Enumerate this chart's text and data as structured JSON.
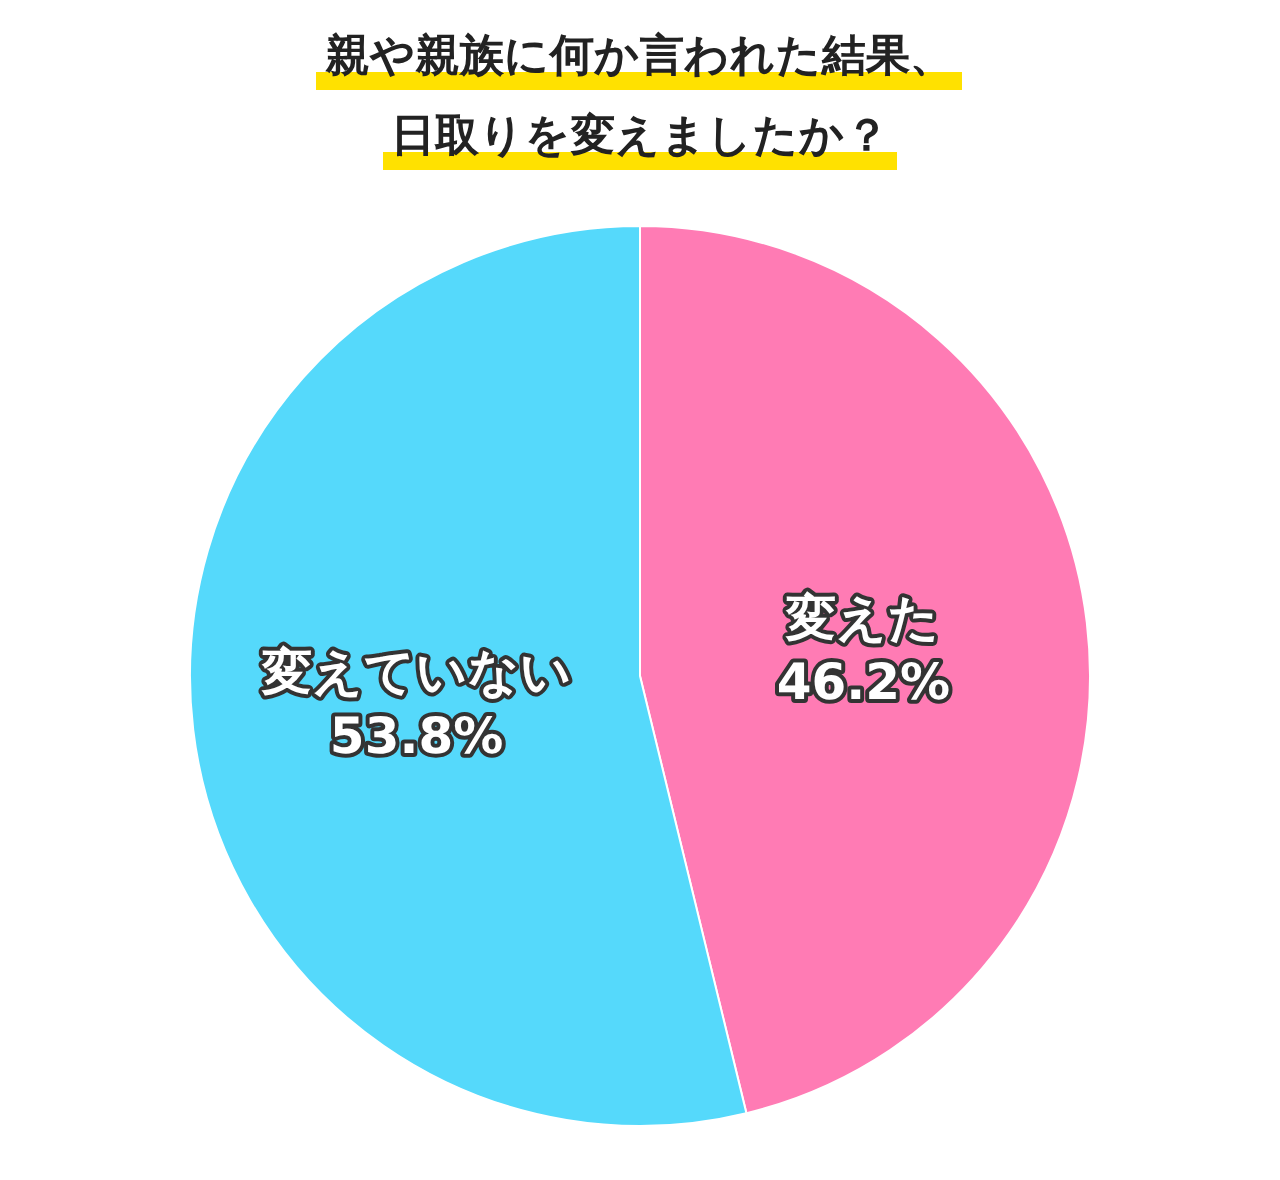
{
  "chart_data": {
    "type": "pie",
    "title": "親や親族に何か言われた結果、日取りを変えましたか？",
    "categories": [
      "変えた",
      "変えていない"
    ],
    "values": [
      46.2,
      53.8
    ],
    "colors": [
      "#ff7bb4",
      "#55d9fb"
    ],
    "value_labels": [
      "46.2%",
      "53.8%"
    ]
  }
}
